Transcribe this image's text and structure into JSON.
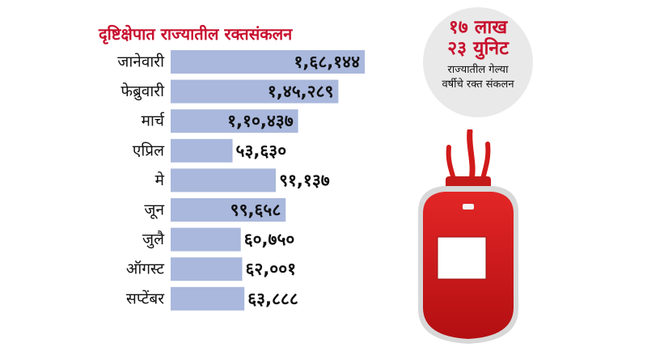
{
  "chart_data": {
    "type": "bar",
    "orientation": "horizontal",
    "title": "दृष्टिक्षेपात राज्यातील रक्तसंकलन",
    "categories": [
      "जानेवारी",
      "फेब्रुवारी",
      "मार्च",
      "एप्रिल",
      "मे",
      "जून",
      "जुलै",
      "ऑगस्ट",
      "सप्टेंबर"
    ],
    "values": [
      168144,
      145289,
      110437,
      53630,
      91137,
      99658,
      60750,
      62001,
      63888
    ],
    "value_labels": [
      "१,६८,१४४",
      "१,४५,२८९",
      "१,१०,४३७",
      "५३,६३०",
      "९१,१३७",
      "९९,६५८",
      "६०,७५०",
      "६२,००१",
      "६३,८८८"
    ],
    "bar_color": "#a9b8dc",
    "grid": false,
    "legend": "none"
  },
  "summary": {
    "line1": "१७ लाख",
    "line2": "२३ युनिट",
    "line3": "राज्यातील गेल्या",
    "line4": "वर्षीचे रक्त संकलन"
  },
  "colors": {
    "title": "#c8102e",
    "badge_bg": "#e9e9e9",
    "blood": "#d11a1a"
  },
  "icons": {
    "illustration": "blood-bag-icon"
  }
}
